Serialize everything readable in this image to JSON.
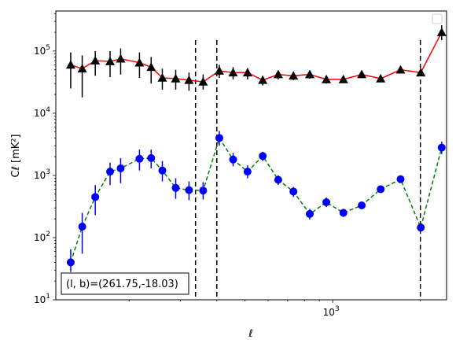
{
  "chart_data": {
    "type": "line",
    "title": "",
    "xlabel": "ℓ",
    "ylabel": "Cℓ  [mK²]",
    "xscale": "log",
    "yscale": "log",
    "xlim": [
      112,
      2460
    ],
    "ylim": [
      10,
      440000
    ],
    "x_tick_labels": [
      {
        "value": 1000,
        "base": "10",
        "exp": "3"
      }
    ],
    "y_tick_labels": [
      {
        "value": 10,
        "base": "10",
        "exp": "1"
      },
      {
        "value": 100,
        "base": "10",
        "exp": "2"
      },
      {
        "value": 1000,
        "base": "10",
        "exp": "3"
      },
      {
        "value": 10000,
        "base": "10",
        "exp": "4"
      },
      {
        "value": 100000,
        "base": "10",
        "exp": "5"
      }
    ],
    "legend": "upper right, empty",
    "grid": false,
    "vlines_x": [
      338,
      400,
      2000
    ],
    "annotation": "(l, b)=(261.75,-18.03)",
    "series": [
      {
        "color": "#ff0000",
        "marker": "triangle",
        "marker_color": "#000000",
        "errorbar_color": "#000000",
        "linestyle": "solid",
        "points": [
          {
            "x": 126,
            "y": 60000,
            "lo": 25000,
            "hi": 95000
          },
          {
            "x": 138,
            "y": 52000,
            "lo": 18000,
            "hi": 85000
          },
          {
            "x": 153,
            "y": 70000,
            "lo": 40000,
            "hi": 100000
          },
          {
            "x": 172,
            "y": 68000,
            "lo": 38000,
            "hi": 100000
          },
          {
            "x": 187,
            "y": 75000,
            "lo": 42000,
            "hi": 110000
          },
          {
            "x": 217,
            "y": 65000,
            "lo": 37000,
            "hi": 95000
          },
          {
            "x": 238,
            "y": 55000,
            "lo": 30000,
            "hi": 80000
          },
          {
            "x": 260,
            "y": 37000,
            "lo": 24000,
            "hi": 52000
          },
          {
            "x": 289,
            "y": 36000,
            "lo": 24000,
            "hi": 50000
          },
          {
            "x": 321,
            "y": 34000,
            "lo": 23000,
            "hi": 45000
          },
          {
            "x": 359,
            "y": 32000,
            "lo": 24000,
            "hi": 42000
          },
          {
            "x": 408,
            "y": 48000,
            "lo": 37000,
            "hi": 60000
          },
          {
            "x": 455,
            "y": 45000,
            "lo": 35000,
            "hi": 55000
          },
          {
            "x": 510,
            "y": 45000,
            "lo": 35000,
            "hi": 53000
          },
          {
            "x": 575,
            "y": 34000,
            "lo": 28000,
            "hi": 40000
          },
          {
            "x": 650,
            "y": 42000,
            "lo": 35000,
            "hi": 48000
          },
          {
            "x": 733,
            "y": 40000,
            "lo": 34000,
            "hi": 46000
          },
          {
            "x": 834,
            "y": 42000,
            "lo": 36000,
            "hi": 48000
          },
          {
            "x": 951,
            "y": 35000,
            "lo": 30000,
            "hi": 40000
          },
          {
            "x": 1088,
            "y": 35000,
            "lo": 31000,
            "hi": 39000
          },
          {
            "x": 1258,
            "y": 42000,
            "lo": 37000,
            "hi": 47000
          },
          {
            "x": 1461,
            "y": 36000,
            "lo": 32000,
            "hi": 40000
          },
          {
            "x": 1710,
            "y": 50000,
            "lo": 44000,
            "hi": 56000
          },
          {
            "x": 2006,
            "y": 45000,
            "lo": 40000,
            "hi": 50000
          },
          {
            "x": 2367,
            "y": 200000,
            "lo": 150000,
            "hi": 260000
          }
        ]
      },
      {
        "color": "#008000",
        "marker": "circle",
        "marker_color": "#0000ff",
        "errorbar_color": "#0000ff",
        "linestyle": "dashed",
        "points": [
          {
            "x": 126,
            "y": 40,
            "lo": 28,
            "hi": 65
          },
          {
            "x": 138,
            "y": 150,
            "lo": 55,
            "hi": 250
          },
          {
            "x": 153,
            "y": 450,
            "lo": 230,
            "hi": 700
          },
          {
            "x": 172,
            "y": 1150,
            "lo": 700,
            "hi": 1600
          },
          {
            "x": 187,
            "y": 1300,
            "lo": 750,
            "hi": 1900
          },
          {
            "x": 217,
            "y": 1850,
            "lo": 1200,
            "hi": 2600
          },
          {
            "x": 238,
            "y": 1900,
            "lo": 1300,
            "hi": 2600
          },
          {
            "x": 260,
            "y": 1200,
            "lo": 800,
            "hi": 1700
          },
          {
            "x": 289,
            "y": 630,
            "lo": 420,
            "hi": 900
          },
          {
            "x": 321,
            "y": 580,
            "lo": 400,
            "hi": 800
          },
          {
            "x": 359,
            "y": 570,
            "lo": 410,
            "hi": 780
          },
          {
            "x": 408,
            "y": 4000,
            "lo": 3000,
            "hi": 5200
          },
          {
            "x": 455,
            "y": 1800,
            "lo": 1400,
            "hi": 2300
          },
          {
            "x": 510,
            "y": 1150,
            "lo": 900,
            "hi": 1450
          },
          {
            "x": 575,
            "y": 2050,
            "lo": 1700,
            "hi": 2400
          },
          {
            "x": 650,
            "y": 850,
            "lo": 700,
            "hi": 1000
          },
          {
            "x": 733,
            "y": 550,
            "lo": 450,
            "hi": 650
          },
          {
            "x": 834,
            "y": 240,
            "lo": 195,
            "hi": 290
          },
          {
            "x": 951,
            "y": 370,
            "lo": 310,
            "hi": 440
          },
          {
            "x": 1088,
            "y": 250,
            "lo": 215,
            "hi": 290
          },
          {
            "x": 1258,
            "y": 330,
            "lo": 290,
            "hi": 375
          },
          {
            "x": 1461,
            "y": 600,
            "lo": 530,
            "hi": 680
          },
          {
            "x": 1710,
            "y": 870,
            "lo": 780,
            "hi": 970
          },
          {
            "x": 2006,
            "y": 145,
            "lo": 128,
            "hi": 165
          },
          {
            "x": 2367,
            "y": 2800,
            "lo": 2200,
            "hi": 3500
          }
        ]
      }
    ]
  }
}
